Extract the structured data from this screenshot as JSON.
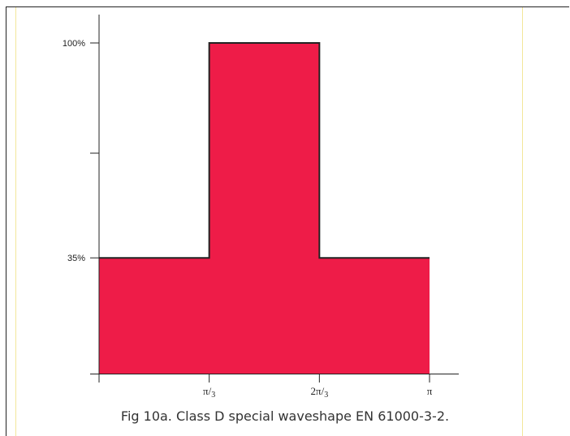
{
  "caption": "Fig 10a. Class D special waveshape EN 61000-3-2.",
  "colors": {
    "fill": "#ee1c48",
    "stroke": "#222222",
    "guide": "#f3e79a"
  },
  "chart_data": {
    "type": "area",
    "title": "",
    "xlabel": "",
    "ylabel": "",
    "xlim": [
      0,
      1.02
    ],
    "ylim": [
      0,
      1.09
    ],
    "grid": false,
    "legend": "none",
    "x": [
      0,
      0.3333,
      0.3333,
      0.6667,
      0.6667,
      1.0
    ],
    "series": [
      {
        "values": [
          0.35,
          0.35,
          1.0,
          1.0,
          0.35,
          0.35
        ]
      }
    ],
    "y_ticks": [
      {
        "value": 1.0,
        "label": "100%"
      },
      {
        "value": 0.6667,
        "label": ""
      },
      {
        "value": 0.35,
        "label": "35%"
      }
    ],
    "x_ticks": [
      {
        "value": 0,
        "label": "",
        "sub": ""
      },
      {
        "value": 0.3333,
        "label": "π/",
        "sub": "3"
      },
      {
        "value": 0.6667,
        "label": "2π/",
        "sub": "3"
      },
      {
        "value": 1.0,
        "label": "π",
        "sub": ""
      }
    ]
  }
}
